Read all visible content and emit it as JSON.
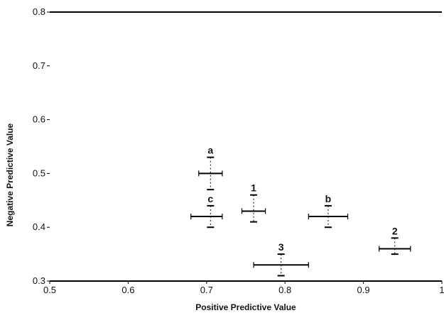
{
  "chart_data": {
    "type": "scatter",
    "xlabel": "Positive Predictive Value",
    "ylabel": "Negative Predictive Value",
    "xlim": [
      0.5,
      1.0
    ],
    "ylim": [
      0.3,
      0.8
    ],
    "x_ticks": [
      "0.5",
      "0.6",
      "0.7",
      "0.8",
      "0.9",
      "1"
    ],
    "y_ticks": [
      "0.3",
      "0.4",
      "0.5",
      "0.6",
      "0.7",
      "0.8"
    ],
    "grid": false,
    "points": [
      {
        "label": "a",
        "x": 0.705,
        "y": 0.5,
        "x_err": [
          0.69,
          0.72
        ],
        "y_err": [
          0.47,
          0.53
        ]
      },
      {
        "label": "c",
        "x": 0.705,
        "y": 0.42,
        "x_err": [
          0.68,
          0.72
        ],
        "y_err": [
          0.4,
          0.44
        ]
      },
      {
        "label": "1",
        "x": 0.76,
        "y": 0.43,
        "x_err": [
          0.745,
          0.775
        ],
        "y_err": [
          0.41,
          0.46
        ]
      },
      {
        "label": "b",
        "x": 0.855,
        "y": 0.42,
        "x_err": [
          0.83,
          0.88
        ],
        "y_err": [
          0.4,
          0.44
        ]
      },
      {
        "label": "3",
        "x": 0.795,
        "y": 0.33,
        "x_err": [
          0.76,
          0.83
        ],
        "y_err": [
          0.31,
          0.35
        ]
      },
      {
        "label": "2",
        "x": 0.94,
        "y": 0.36,
        "x_err": [
          0.92,
          0.96
        ],
        "y_err": [
          0.35,
          0.38
        ]
      }
    ]
  }
}
